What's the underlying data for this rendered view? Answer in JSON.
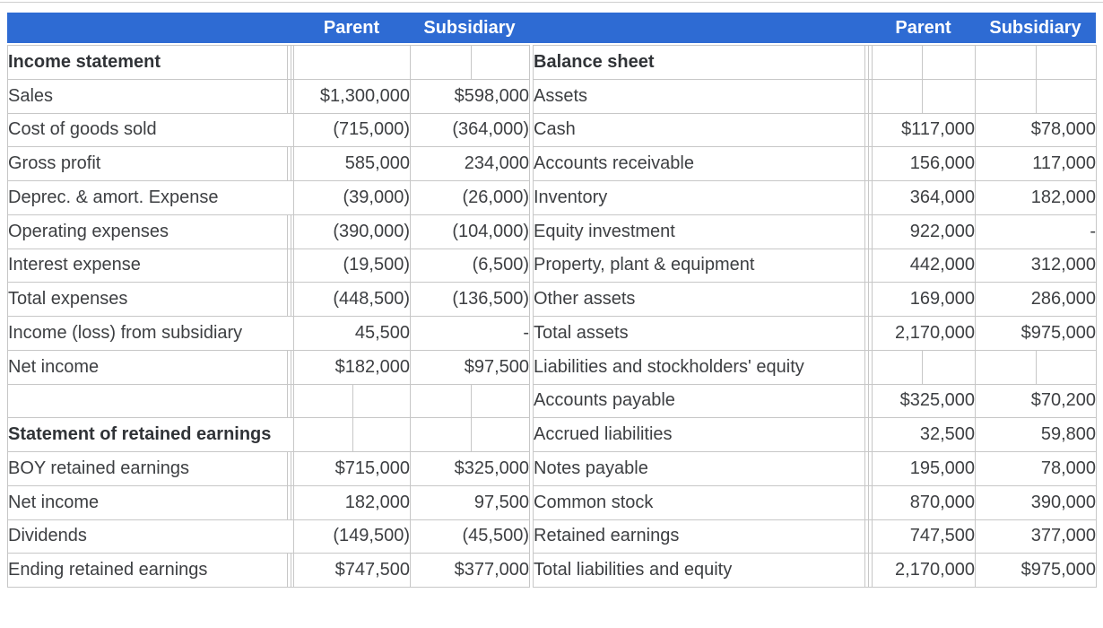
{
  "band": {
    "background": "#2e6bd3",
    "labels": [
      {
        "text": "Parent"
      },
      {
        "text": "Subsidiary"
      },
      {
        "text": "Parent"
      },
      {
        "text": "Subsidiary"
      }
    ]
  },
  "colors": {
    "band_blue": "#2e6bd3",
    "grid_gray": "#c7c7c7",
    "rule_black": "#202020",
    "text": "#3d3f42"
  },
  "left_table": {
    "title": "Income statement / Statement of retained earnings",
    "columns": [
      "Label",
      "Parent",
      "Subsidiary"
    ],
    "rows": [
      {
        "label": "Income statement",
        "bold": true,
        "merged": false,
        "split": "sub",
        "parent": "",
        "sub": ""
      },
      {
        "label": "Sales",
        "parent": "$1,300,000",
        "sub": "$598,000"
      },
      {
        "label": "Cost of goods sold",
        "merged": true,
        "parent": "(715,000)",
        "sub": "(364,000)",
        "rule": "single"
      },
      {
        "label": "Gross profit",
        "parent": "585,000",
        "sub": "234,000"
      },
      {
        "label": "Deprec. & amort. Expense",
        "merged": true,
        "parent": "(39,000)",
        "sub": "(26,000)"
      },
      {
        "label": "Operating expenses",
        "parent": "(390,000)",
        "sub": "(104,000)"
      },
      {
        "label": "Interest expense",
        "parent": "(19,500)",
        "sub": "(6,500)",
        "rule": "single"
      },
      {
        "label": "Total expenses",
        "parent": "(448,500)",
        "sub": "(136,500)",
        "rule": "single"
      },
      {
        "label": "Income (loss) from subsidiary",
        "merged": true,
        "parent": "45,500",
        "sub": "-",
        "rule": "single"
      },
      {
        "label": "Net income",
        "parent": "$182,000",
        "sub": "$97,500",
        "rule": "double"
      },
      {
        "label": "",
        "split": true,
        "parent": "",
        "sub": ""
      },
      {
        "label": "Statement of retained earnings",
        "bold": true,
        "merged": true,
        "split": true,
        "parent": "",
        "sub": ""
      },
      {
        "label": "BOY retained earnings",
        "parent": "$715,000",
        "sub": "$325,000"
      },
      {
        "label": "Net income",
        "parent": "182,000",
        "sub": "97,500"
      },
      {
        "label": "Dividends",
        "merged": true,
        "parent": "(149,500)",
        "sub": "(45,500)",
        "rule": "single"
      },
      {
        "label": "Ending retained earnings",
        "parent": "$747,500",
        "sub": "$377,000",
        "rule": "double"
      }
    ]
  },
  "right_table": {
    "title": "Balance sheet",
    "columns": [
      "Label",
      "Parent",
      "Subsidiary"
    ],
    "rows": [
      {
        "label": "Balance sheet",
        "bold": true,
        "split": true,
        "parent": "",
        "sub": ""
      },
      {
        "label": "Assets",
        "split": true,
        "parent": "",
        "sub": ""
      },
      {
        "label": "Cash",
        "parent": "$117,000",
        "sub": "$78,000"
      },
      {
        "label": "Accounts receivable",
        "parent": "156,000",
        "sub": "117,000"
      },
      {
        "label": "Inventory",
        "parent": "364,000",
        "sub": "182,000"
      },
      {
        "label": "Equity investment",
        "parent": "922,000",
        "sub": "-"
      },
      {
        "label": "Property, plant & equipment",
        "parent": "442,000",
        "sub": "312,000"
      },
      {
        "label": "Other assets",
        "parent": "169,000",
        "sub": "286,000",
        "rule": "single"
      },
      {
        "label": "Total assets",
        "parent": "2,170,000",
        "sub": "$975,000",
        "rule": "double"
      },
      {
        "label": "Liabilities and stockholders' equity",
        "split": true,
        "parent": "",
        "sub": ""
      },
      {
        "label": "Accounts payable",
        "parent": "$325,000",
        "sub": "$70,200"
      },
      {
        "label": "Accrued liabilities",
        "parent": "32,500",
        "sub": "59,800"
      },
      {
        "label": "Notes payable",
        "parent": "195,000",
        "sub": "78,000"
      },
      {
        "label": "Common stock",
        "parent": "870,000",
        "sub": "390,000"
      },
      {
        "label": "Retained earnings",
        "parent": "747,500",
        "sub": "377,000",
        "rule": "single"
      },
      {
        "label": "Total liabilities and equity",
        "parent": "2,170,000",
        "sub": "$975,000",
        "rule": "double"
      }
    ]
  }
}
